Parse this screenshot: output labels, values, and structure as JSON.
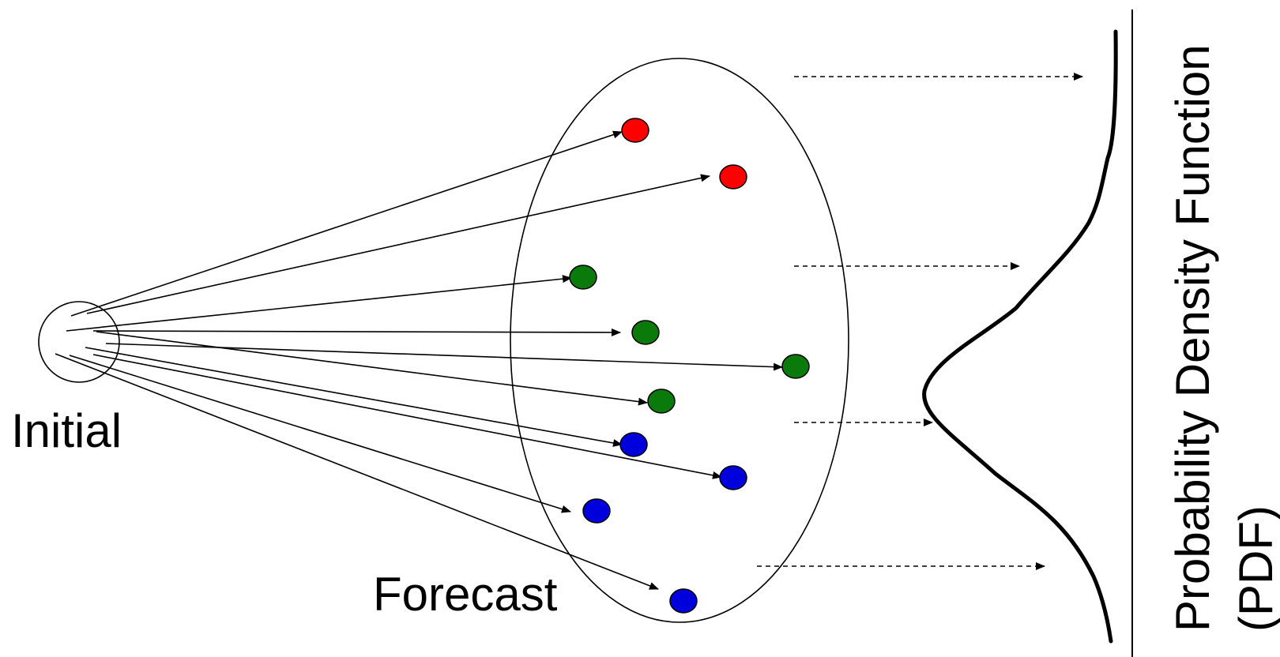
{
  "labels": {
    "initial": "Initial",
    "forecast": "Forecast",
    "pdf_line1": "Probability Density Function",
    "pdf_line2": "(PDF)"
  },
  "colors": {
    "line": "#000000",
    "red": "#ff0000",
    "green": "#0a7a0a",
    "blue": "#0000dd"
  }
}
